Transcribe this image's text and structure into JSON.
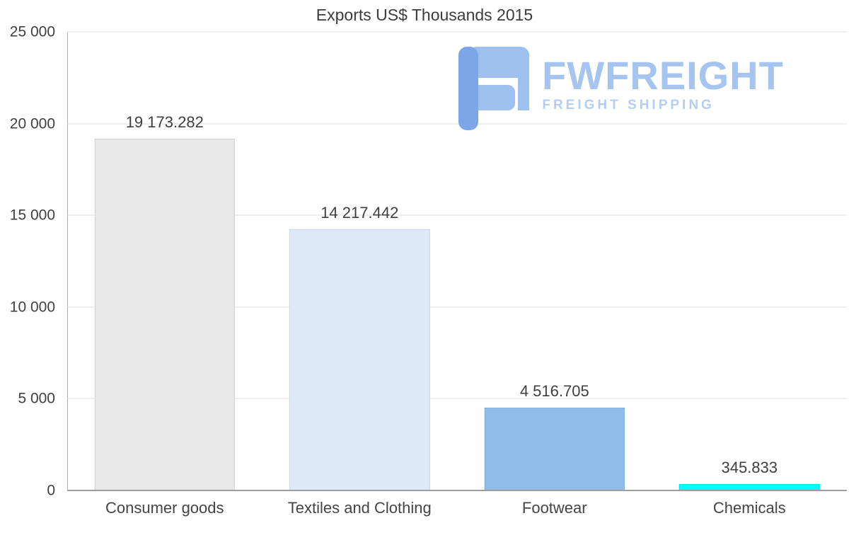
{
  "title": "Exports US$ Thousands 2015",
  "watermark": {
    "name": "FWFREIGHT",
    "tagline": "FREIGHT SHIPPING",
    "name_color": "#a5c4ef",
    "tagline_color": "#b4cdf2",
    "icon_color_dark": "#7ba6e8",
    "icon_color_light": "#9fc1f0"
  },
  "chart_data": {
    "type": "bar",
    "title": "Exports US$ Thousands 2015",
    "categories": [
      "Consumer goods",
      "Textiles and Clothing",
      "Footwear",
      "Chemicals"
    ],
    "values": [
      19173.282,
      14217.442,
      4516.705,
      345.833
    ],
    "value_labels": [
      "19 173.282",
      "14 217.442",
      "4 516.705",
      "345.833"
    ],
    "colors": [
      "#e8e8e8",
      "#dbe9f8",
      "#8fbce8",
      "#00ffff"
    ],
    "border_colors": [
      "#cfcfcf",
      "#c5dbf3",
      "#7dafe2",
      "#00e0e0"
    ],
    "xlabel": "",
    "ylabel": "",
    "ylim": [
      0,
      25000
    ],
    "yticks": [
      {
        "value": 0,
        "label": "0"
      },
      {
        "value": 5000,
        "label": "5 000"
      },
      {
        "value": 10000,
        "label": "10 000"
      },
      {
        "value": 15000,
        "label": "15 000"
      },
      {
        "value": 20000,
        "label": "20 000"
      },
      {
        "value": 25000,
        "label": "25 000"
      }
    ],
    "grid": true,
    "legend": false
  }
}
